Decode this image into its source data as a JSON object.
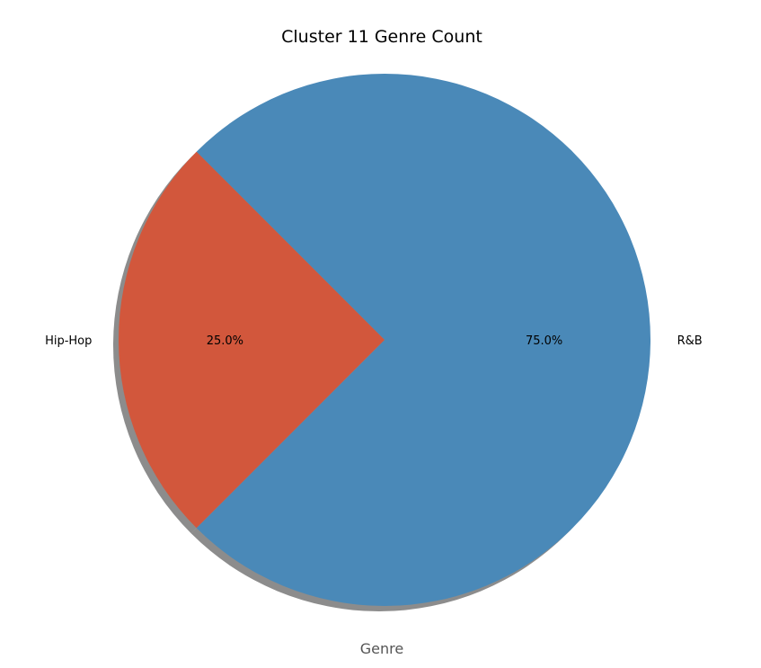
{
  "chart_data": {
    "type": "pie",
    "title": "Cluster 11 Genre Count",
    "xlabel": "Genre",
    "ylabel": "",
    "categories": [
      "R&B",
      "Hip-Hop"
    ],
    "values": [
      75.0,
      25.0
    ],
    "percent_labels": [
      "75.0%",
      "25.0%"
    ],
    "colors": [
      "#4a89b8",
      "#d2573c"
    ],
    "shadow": true,
    "start_angle": 135
  }
}
